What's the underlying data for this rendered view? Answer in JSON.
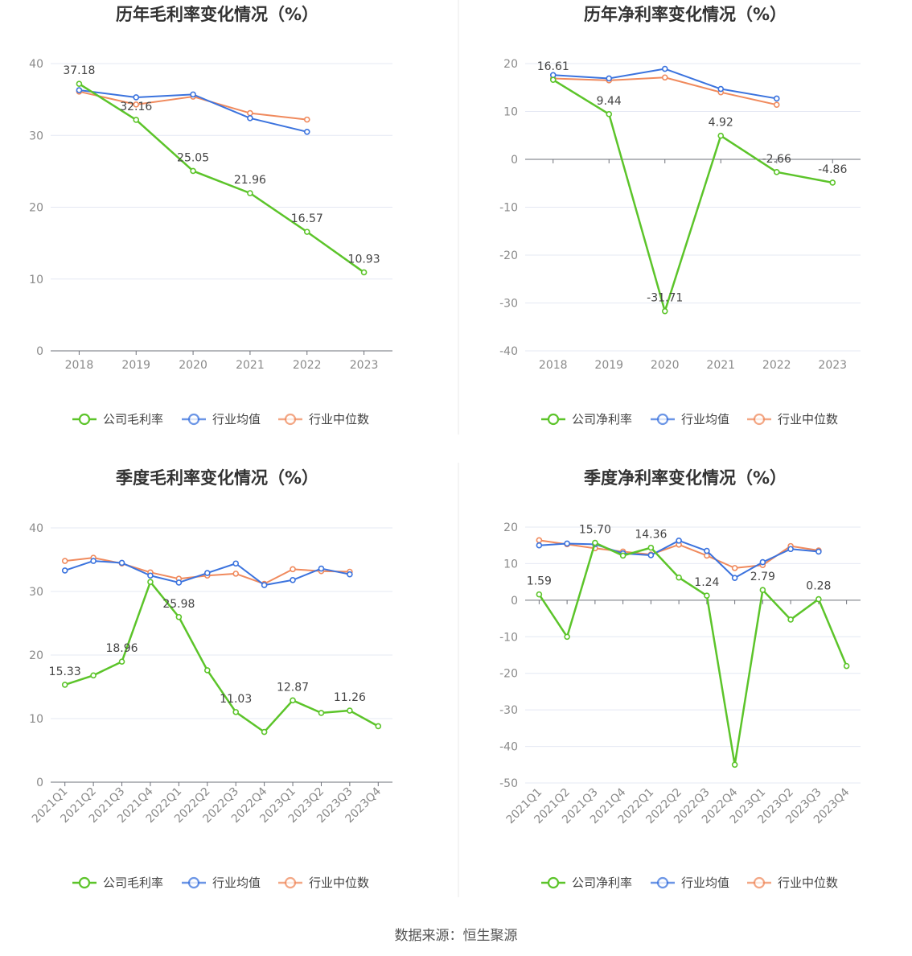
{
  "colors": {
    "company": "#5cc42a",
    "industry_avg": "#3b73de",
    "industry_median": "#f08a5d",
    "grid": "#e4e8f3",
    "axis": "#6e7079",
    "divider": "#e8e8e8"
  },
  "source_text": "数据来源：恒生聚源",
  "chart_data": [
    {
      "type": "line",
      "title": "历年毛利率变化情况（%）",
      "categories": [
        "2018",
        "2019",
        "2020",
        "2021",
        "2022",
        "2023"
      ],
      "ylim": [
        0,
        40
      ],
      "yticks": [
        0,
        10,
        20,
        30,
        40
      ],
      "series": [
        {
          "name": "公司毛利率",
          "values": [
            37.18,
            32.16,
            25.05,
            21.96,
            16.57,
            10.93
          ],
          "labels": [
            "37.18",
            "32.16",
            "25.05",
            "21.96",
            "16.57",
            "10.93"
          ]
        },
        {
          "name": "行业均值",
          "values": [
            36.3,
            35.3,
            35.7,
            32.4,
            30.5,
            null
          ]
        },
        {
          "name": "行业中位数",
          "values": [
            36.1,
            34.3,
            35.4,
            33.1,
            32.2,
            null
          ]
        }
      ]
    },
    {
      "type": "line",
      "title": "历年净利率变化情况（%）",
      "categories": [
        "2018",
        "2019",
        "2020",
        "2021",
        "2022",
        "2023"
      ],
      "ylim": [
        -40,
        20
      ],
      "yticks": [
        -40,
        -30,
        -20,
        -10,
        0,
        10,
        20
      ],
      "series": [
        {
          "name": "公司净利率",
          "values": [
            16.61,
            9.44,
            -31.71,
            4.92,
            -2.66,
            -4.86
          ],
          "labels": [
            "16.61",
            "9.44",
            "-31.71",
            "4.92",
            "-2.66",
            "-4.86"
          ]
        },
        {
          "name": "行业均值",
          "values": [
            17.6,
            16.9,
            18.9,
            14.7,
            12.7,
            null
          ]
        },
        {
          "name": "行业中位数",
          "values": [
            16.9,
            16.5,
            17.1,
            14.0,
            11.4,
            null
          ]
        }
      ]
    },
    {
      "type": "line",
      "title": "季度毛利率变化情况（%）",
      "categories": [
        "2021Q1",
        "2021Q2",
        "2021Q3",
        "2021Q4",
        "2022Q1",
        "2022Q2",
        "2022Q3",
        "2022Q4",
        "2023Q1",
        "2023Q2",
        "2023Q3",
        "2023Q4"
      ],
      "ylim": [
        0,
        40
      ],
      "yticks": [
        0,
        10,
        20,
        30,
        40
      ],
      "series": [
        {
          "name": "公司毛利率",
          "values": [
            15.33,
            16.8,
            18.96,
            31.5,
            25.98,
            17.6,
            11.03,
            7.9,
            12.87,
            10.9,
            11.26,
            8.8
          ],
          "labels": [
            "15.33",
            "",
            "18.96",
            "",
            "25.98",
            "",
            "11.03",
            "",
            "12.87",
            "",
            "11.26",
            ""
          ]
        },
        {
          "name": "行业均值",
          "values": [
            33.3,
            34.8,
            34.5,
            32.5,
            31.4,
            32.9,
            34.4,
            31.0,
            31.8,
            33.6,
            32.7,
            null
          ]
        },
        {
          "name": "行业中位数",
          "values": [
            34.8,
            35.3,
            34.4,
            33.0,
            32.0,
            32.5,
            32.8,
            31.2,
            33.5,
            33.2,
            33.1,
            null
          ]
        }
      ]
    },
    {
      "type": "line",
      "title": "季度净利率变化情况（%）",
      "categories": [
        "2021Q1",
        "2021Q2",
        "2021Q3",
        "2021Q4",
        "2022Q1",
        "2022Q2",
        "2022Q3",
        "2022Q4",
        "2023Q1",
        "2023Q2",
        "2023Q3",
        "2023Q4"
      ],
      "ylim": [
        -50,
        20
      ],
      "yticks": [
        -50,
        -40,
        -30,
        -20,
        -10,
        0,
        10,
        20
      ],
      "series": [
        {
          "name": "公司净利率",
          "values": [
            1.59,
            -10.0,
            15.7,
            12.2,
            14.36,
            6.2,
            1.24,
            -45.0,
            2.79,
            -5.3,
            0.28,
            -18.0
          ],
          "labels": [
            "1.59",
            "",
            "15.70",
            "",
            "14.36",
            "",
            "1.24",
            "",
            "2.79",
            "",
            "0.28",
            ""
          ]
        },
        {
          "name": "行业均值",
          "values": [
            15.0,
            15.5,
            15.3,
            12.8,
            12.3,
            16.3,
            13.5,
            6.1,
            10.4,
            14.0,
            13.3,
            null
          ]
        },
        {
          "name": "行业中位数",
          "values": [
            16.4,
            15.3,
            14.2,
            13.3,
            12.5,
            15.2,
            12.2,
            8.8,
            9.6,
            14.8,
            13.6,
            null
          ]
        }
      ]
    }
  ]
}
